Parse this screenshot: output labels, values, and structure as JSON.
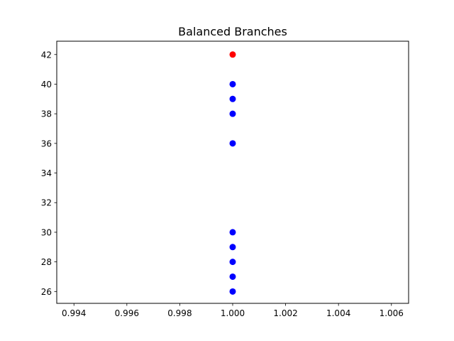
{
  "chart_data": {
    "type": "scatter",
    "title": "Balanced Branches",
    "xlabel": "",
    "ylabel": "",
    "xlim": [
      0.99335,
      1.00665
    ],
    "ylim": [
      25.2,
      42.9
    ],
    "x_ticks": [
      "0.994",
      "0.996",
      "0.998",
      "1.000",
      "1.002",
      "1.004",
      "1.006"
    ],
    "y_ticks": [
      "26",
      "28",
      "30",
      "32",
      "34",
      "36",
      "38",
      "40",
      "42"
    ],
    "grid": false,
    "series": [
      {
        "color": "#0000ff",
        "points": [
          {
            "x": 1.0,
            "y": 40
          },
          {
            "x": 1.0,
            "y": 39
          },
          {
            "x": 1.0,
            "y": 38
          },
          {
            "x": 1.0,
            "y": 36
          },
          {
            "x": 1.0,
            "y": 30
          },
          {
            "x": 1.0,
            "y": 29
          },
          {
            "x": 1.0,
            "y": 28
          },
          {
            "x": 1.0,
            "y": 27
          },
          {
            "x": 1.0,
            "y": 26
          }
        ]
      },
      {
        "color": "#ff0000",
        "points": [
          {
            "x": 1.0,
            "y": 42
          }
        ]
      }
    ]
  }
}
